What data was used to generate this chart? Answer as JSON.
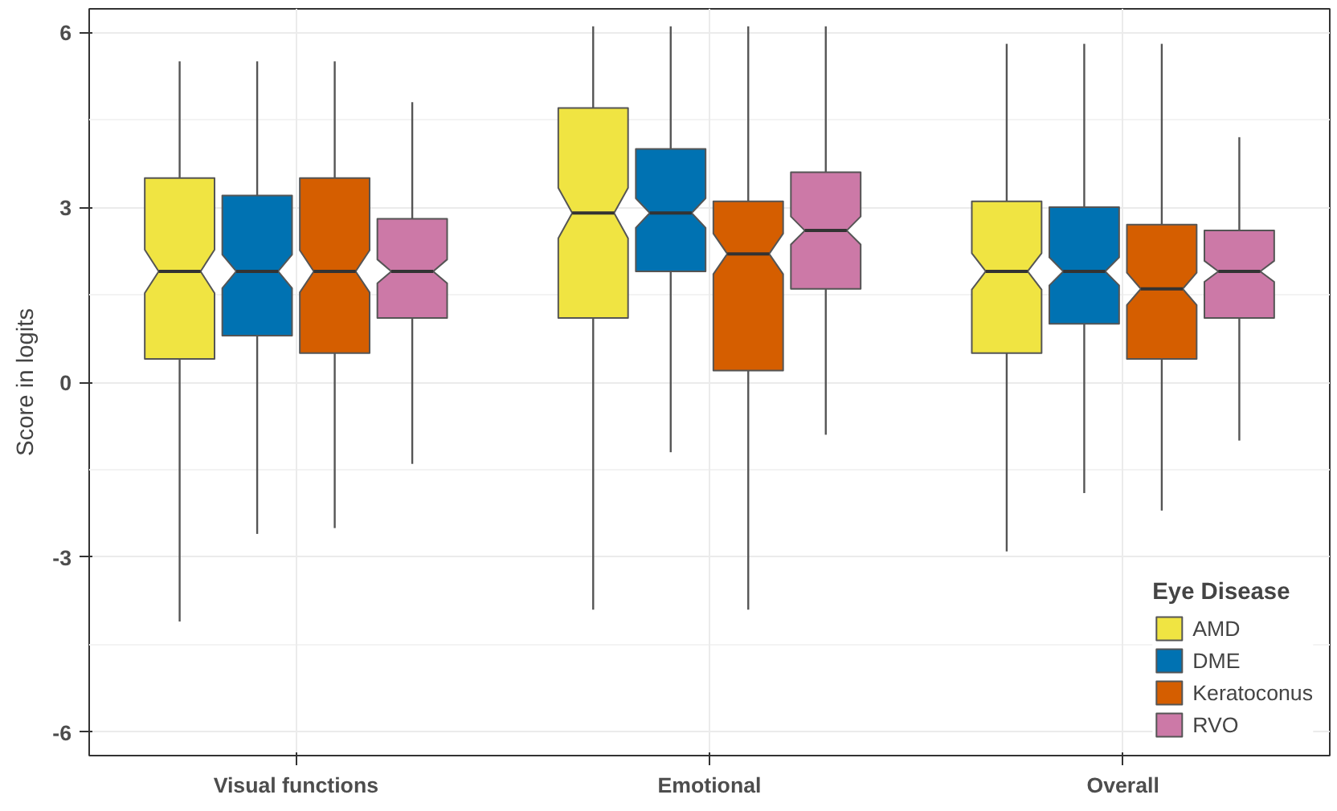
{
  "chart_data": {
    "type": "box",
    "ylabel": "Score in logits",
    "legend_title": "Eye Disease",
    "categories": [
      "Visual functions",
      "Emotional",
      "Overall"
    ],
    "ylim": [
      -6.4,
      6.4
    ],
    "yticks": [
      -6,
      -3,
      0,
      3,
      6
    ],
    "grid": true,
    "legend": "bottom right",
    "series": [
      {
        "name": "AMD",
        "color": "#f0e442",
        "boxes": [
          {
            "low": -4.1,
            "q1": 0.4,
            "median": 1.9,
            "q3": 3.5,
            "high": 5.5
          },
          {
            "low": -3.9,
            "q1": 1.1,
            "median": 2.9,
            "q3": 4.7,
            "high": 6.1
          },
          {
            "low": -2.9,
            "q1": 0.5,
            "median": 1.9,
            "q3": 3.1,
            "high": 5.8
          }
        ]
      },
      {
        "name": "DME",
        "color": "#0072b2",
        "boxes": [
          {
            "low": -2.6,
            "q1": 0.8,
            "median": 1.9,
            "q3": 3.2,
            "high": 5.5
          },
          {
            "low": -1.2,
            "q1": 1.9,
            "median": 2.9,
            "q3": 4.0,
            "high": 6.1
          },
          {
            "low": -1.9,
            "q1": 1.0,
            "median": 1.9,
            "q3": 3.0,
            "high": 5.8
          }
        ]
      },
      {
        "name": "Keratoconus",
        "color": "#d55e00",
        "boxes": [
          {
            "low": -2.5,
            "q1": 0.5,
            "median": 1.9,
            "q3": 3.5,
            "high": 5.5
          },
          {
            "low": -3.9,
            "q1": 0.2,
            "median": 2.2,
            "q3": 3.1,
            "high": 6.1
          },
          {
            "low": -2.2,
            "q1": 0.4,
            "median": 1.6,
            "q3": 2.7,
            "high": 5.8
          }
        ]
      },
      {
        "name": "RVO",
        "color": "#cc79a7",
        "boxes": [
          {
            "low": -1.4,
            "q1": 1.1,
            "median": 1.9,
            "q3": 2.8,
            "high": 4.8
          },
          {
            "low": -0.9,
            "q1": 1.6,
            "median": 2.6,
            "q3": 3.6,
            "high": 6.1
          },
          {
            "low": -1.0,
            "q1": 1.1,
            "median": 1.9,
            "q3": 2.6,
            "high": 4.2
          }
        ]
      }
    ]
  }
}
